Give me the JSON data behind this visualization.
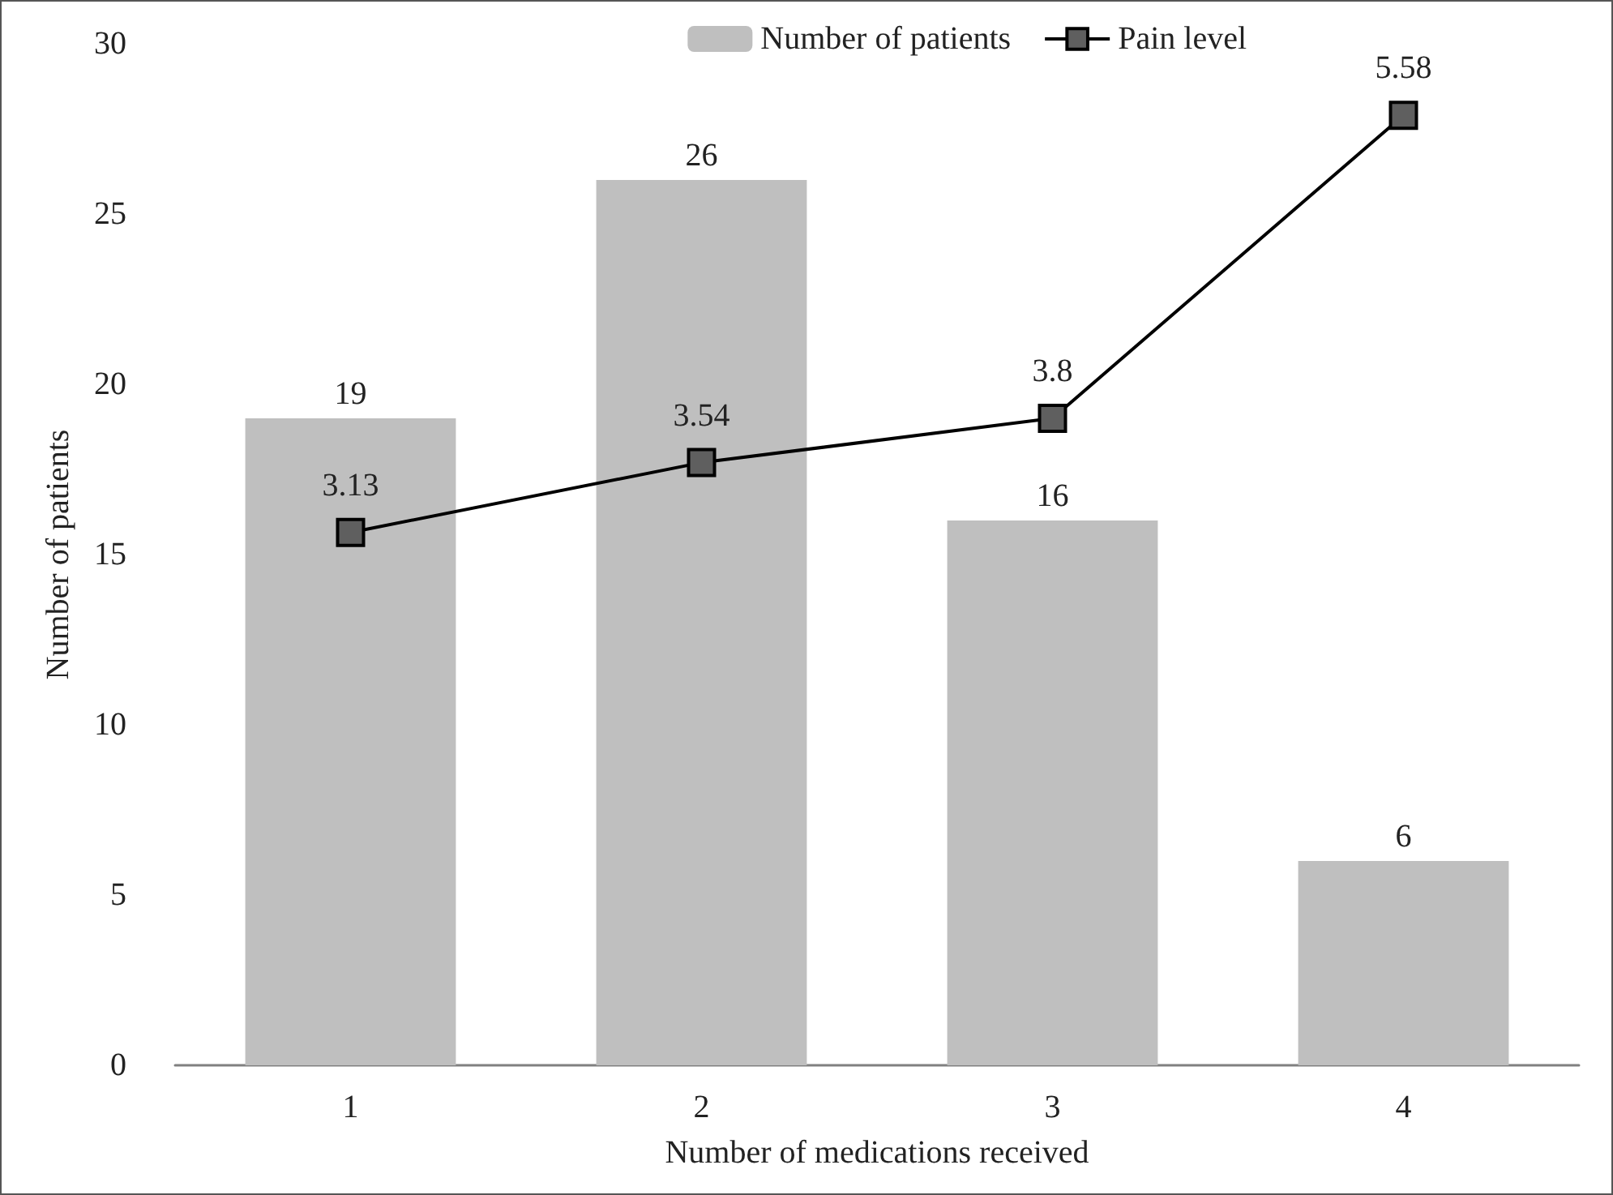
{
  "chart_data": {
    "type": "bar",
    "xlabel": "Number of medications received",
    "ylabel": "Number of patients",
    "categories": [
      "1",
      "2",
      "3",
      "4"
    ],
    "series": [
      {
        "name": "Number of patients",
        "color": "#bfbfbf",
        "values": [
          19,
          26,
          16,
          6
        ]
      },
      {
        "name": "Pain level",
        "type": "line",
        "axis": "y2",
        "color": "#000000",
        "values": [
          3.13,
          3.54,
          3.8,
          5.58
        ]
      }
    ],
    "ylim": [
      0,
      30
    ],
    "yticks": [
      0,
      5,
      10,
      15,
      20,
      25,
      30
    ],
    "tick_labels": "xy",
    "data_labels": true,
    "grid": false,
    "legend": "top right",
    "marker": "square",
    "line_style": "solid"
  }
}
